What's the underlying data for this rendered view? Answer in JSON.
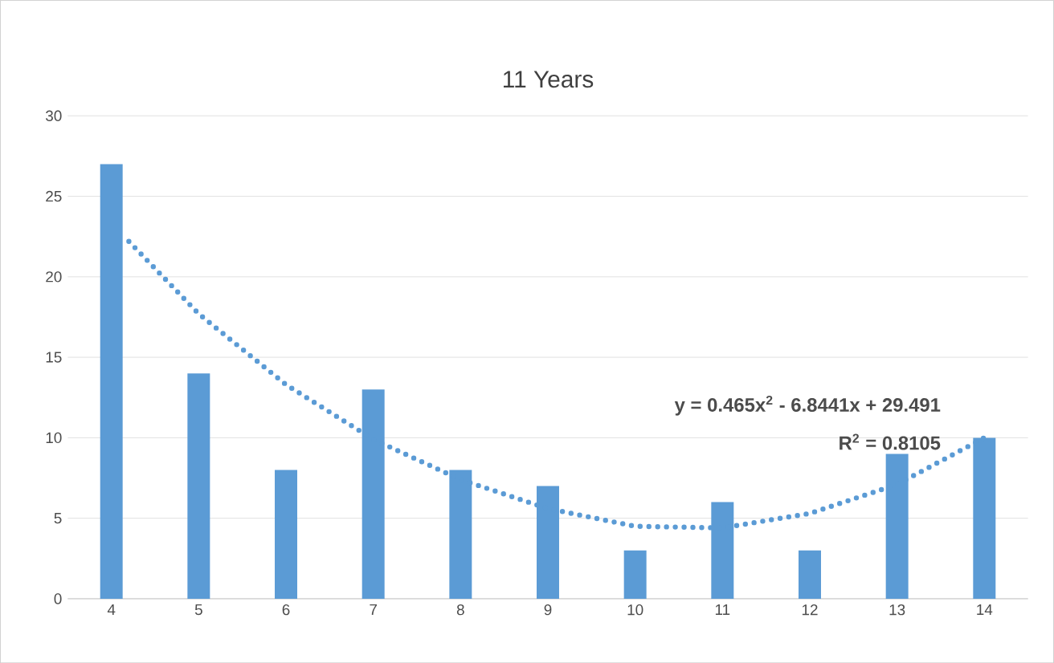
{
  "chart_data": {
    "type": "bar",
    "title": "11 Years",
    "x": [
      4,
      5,
      6,
      7,
      8,
      9,
      10,
      11,
      12,
      13,
      14
    ],
    "series": [
      {
        "type": "bar",
        "color": "#5b9bd5",
        "values": [
          27,
          14,
          8,
          13,
          8,
          7,
          3,
          6,
          3,
          9,
          10
        ]
      },
      {
        "type": "line",
        "color": "#5b9bd5",
        "line_style": "dotted",
        "marker": "none",
        "x": [
          4.2,
          5,
          6,
          7,
          8,
          9,
          10,
          11,
          12,
          13,
          14
        ],
        "values": [
          22.2,
          17.7,
          13.3,
          9.9,
          7.4,
          5.6,
          4.5,
          4.4,
          5.3,
          7.1,
          10.0
        ]
      }
    ],
    "xlim": [
      3.5,
      14.5
    ],
    "xticks": [
      4,
      5,
      6,
      7,
      8,
      9,
      10,
      11,
      12,
      13,
      14
    ],
    "ylim": [
      0,
      30
    ],
    "yticks": [
      0,
      5,
      10,
      15,
      20,
      25,
      30
    ],
    "grid": "y",
    "annotations": [
      "y = 0.465x$^{2}$ - 6.8441x + 29.491",
      "R$^{2}$ = 0.8105"
    ]
  }
}
